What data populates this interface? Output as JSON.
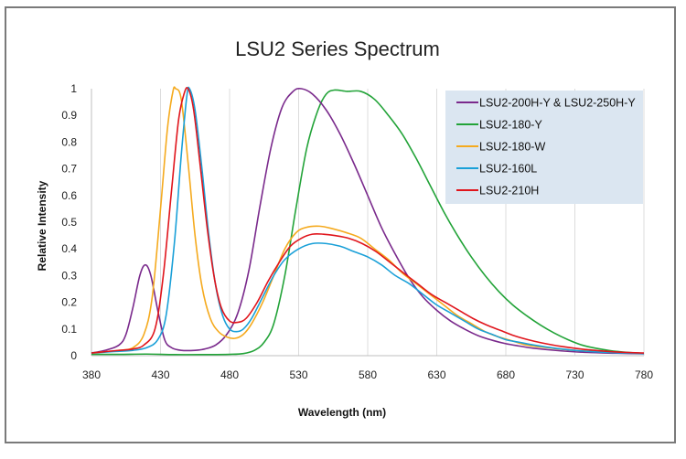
{
  "chart_data": {
    "type": "line",
    "title": "LSU2 Series Spectrum",
    "xlabel": "Wavelength (nm)",
    "ylabel": "Relative Intensity",
    "xlim": [
      380,
      780
    ],
    "ylim": [
      0,
      1
    ],
    "x_ticks": [
      "380",
      "430",
      "480",
      "530",
      "580",
      "630",
      "680",
      "730",
      "780"
    ],
    "y_ticks": [
      "0",
      "0.1",
      "0.2",
      "0.3",
      "0.4",
      "0.5",
      "0.6",
      "0.7",
      "0.8",
      "0.9",
      "1"
    ],
    "grid": "vertical",
    "legend_position": "top-right",
    "series": [
      {
        "name": "LSU2-200H-Y & LSU2-250H-Y",
        "color": "#7a2a8c",
        "points": [
          [
            380,
            0.01
          ],
          [
            390,
            0.02
          ],
          [
            400,
            0.04
          ],
          [
            405,
            0.08
          ],
          [
            410,
            0.18
          ],
          [
            415,
            0.3
          ],
          [
            419,
            0.34
          ],
          [
            423,
            0.3
          ],
          [
            428,
            0.17
          ],
          [
            433,
            0.06
          ],
          [
            438,
            0.03
          ],
          [
            445,
            0.02
          ],
          [
            455,
            0.02
          ],
          [
            462,
            0.025
          ],
          [
            470,
            0.04
          ],
          [
            478,
            0.08
          ],
          [
            486,
            0.16
          ],
          [
            494,
            0.32
          ],
          [
            502,
            0.56
          ],
          [
            510,
            0.78
          ],
          [
            518,
            0.93
          ],
          [
            526,
            0.99
          ],
          [
            532,
            1.0
          ],
          [
            540,
            0.98
          ],
          [
            550,
            0.92
          ],
          [
            560,
            0.83
          ],
          [
            570,
            0.72
          ],
          [
            580,
            0.6
          ],
          [
            590,
            0.48
          ],
          [
            600,
            0.38
          ],
          [
            610,
            0.29
          ],
          [
            620,
            0.22
          ],
          [
            630,
            0.17
          ],
          [
            640,
            0.13
          ],
          [
            650,
            0.1
          ],
          [
            660,
            0.075
          ],
          [
            670,
            0.058
          ],
          [
            680,
            0.045
          ],
          [
            690,
            0.036
          ],
          [
            700,
            0.028
          ],
          [
            720,
            0.018
          ],
          [
            740,
            0.012
          ],
          [
            760,
            0.009
          ],
          [
            780,
            0.007
          ]
        ]
      },
      {
        "name": "LSU2-180-Y",
        "color": "#22a338",
        "points": [
          [
            380,
            0.005
          ],
          [
            400,
            0.005
          ],
          [
            420,
            0.006
          ],
          [
            440,
            0.004
          ],
          [
            460,
            0.004
          ],
          [
            480,
            0.005
          ],
          [
            490,
            0.008
          ],
          [
            498,
            0.02
          ],
          [
            505,
            0.05
          ],
          [
            512,
            0.12
          ],
          [
            520,
            0.3
          ],
          [
            528,
            0.55
          ],
          [
            536,
            0.78
          ],
          [
            544,
            0.92
          ],
          [
            550,
            0.98
          ],
          [
            556,
            0.995
          ],
          [
            565,
            0.99
          ],
          [
            575,
            0.99
          ],
          [
            585,
            0.96
          ],
          [
            595,
            0.9
          ],
          [
            605,
            0.83
          ],
          [
            615,
            0.74
          ],
          [
            625,
            0.64
          ],
          [
            635,
            0.54
          ],
          [
            645,
            0.45
          ],
          [
            655,
            0.37
          ],
          [
            665,
            0.3
          ],
          [
            675,
            0.24
          ],
          [
            685,
            0.19
          ],
          [
            695,
            0.15
          ],
          [
            705,
            0.115
          ],
          [
            715,
            0.085
          ],
          [
            725,
            0.06
          ],
          [
            735,
            0.04
          ],
          [
            745,
            0.028
          ],
          [
            760,
            0.016
          ],
          [
            780,
            0.008
          ]
        ]
      },
      {
        "name": "LSU2-180-W",
        "color": "#f5aa1e",
        "points": [
          [
            380,
            0.01
          ],
          [
            390,
            0.015
          ],
          [
            400,
            0.02
          ],
          [
            410,
            0.03
          ],
          [
            418,
            0.08
          ],
          [
            424,
            0.22
          ],
          [
            430,
            0.55
          ],
          [
            435,
            0.85
          ],
          [
            439,
            0.99
          ],
          [
            441,
            1.0
          ],
          [
            445,
            0.96
          ],
          [
            450,
            0.72
          ],
          [
            455,
            0.45
          ],
          [
            460,
            0.26
          ],
          [
            466,
            0.14
          ],
          [
            472,
            0.09
          ],
          [
            478,
            0.07
          ],
          [
            484,
            0.065
          ],
          [
            490,
            0.08
          ],
          [
            496,
            0.12
          ],
          [
            504,
            0.2
          ],
          [
            512,
            0.3
          ],
          [
            520,
            0.4
          ],
          [
            528,
            0.46
          ],
          [
            535,
            0.48
          ],
          [
            545,
            0.485
          ],
          [
            555,
            0.475
          ],
          [
            565,
            0.46
          ],
          [
            575,
            0.44
          ],
          [
            585,
            0.4
          ],
          [
            595,
            0.36
          ],
          [
            605,
            0.31
          ],
          [
            615,
            0.27
          ],
          [
            625,
            0.23
          ],
          [
            635,
            0.19
          ],
          [
            645,
            0.15
          ],
          [
            655,
            0.12
          ],
          [
            665,
            0.09
          ],
          [
            675,
            0.07
          ],
          [
            685,
            0.055
          ],
          [
            695,
            0.04
          ],
          [
            710,
            0.03
          ],
          [
            730,
            0.02
          ],
          [
            760,
            0.012
          ],
          [
            780,
            0.008
          ]
        ]
      },
      {
        "name": "LSU2-160L",
        "color": "#1aa0d8",
        "points": [
          [
            380,
            0.01
          ],
          [
            395,
            0.015
          ],
          [
            410,
            0.02
          ],
          [
            420,
            0.03
          ],
          [
            428,
            0.06
          ],
          [
            434,
            0.15
          ],
          [
            440,
            0.42
          ],
          [
            445,
            0.75
          ],
          [
            449,
            0.97
          ],
          [
            451,
            1.0
          ],
          [
            455,
            0.92
          ],
          [
            460,
            0.7
          ],
          [
            465,
            0.45
          ],
          [
            470,
            0.26
          ],
          [
            475,
            0.15
          ],
          [
            480,
            0.1
          ],
          [
            485,
            0.09
          ],
          [
            490,
            0.1
          ],
          [
            496,
            0.14
          ],
          [
            504,
            0.22
          ],
          [
            512,
            0.3
          ],
          [
            520,
            0.36
          ],
          [
            530,
            0.4
          ],
          [
            540,
            0.42
          ],
          [
            550,
            0.42
          ],
          [
            560,
            0.41
          ],
          [
            570,
            0.39
          ],
          [
            580,
            0.37
          ],
          [
            590,
            0.34
          ],
          [
            600,
            0.3
          ],
          [
            610,
            0.27
          ],
          [
            620,
            0.23
          ],
          [
            630,
            0.19
          ],
          [
            640,
            0.16
          ],
          [
            650,
            0.13
          ],
          [
            660,
            0.1
          ],
          [
            670,
            0.08
          ],
          [
            680,
            0.06
          ],
          [
            690,
            0.05
          ],
          [
            700,
            0.04
          ],
          [
            720,
            0.025
          ],
          [
            740,
            0.016
          ],
          [
            760,
            0.011
          ],
          [
            780,
            0.008
          ]
        ]
      },
      {
        "name": "LSU2-210H",
        "color": "#e0151c",
        "points": [
          [
            380,
            0.01
          ],
          [
            390,
            0.015
          ],
          [
            400,
            0.02
          ],
          [
            410,
            0.025
          ],
          [
            418,
            0.04
          ],
          [
            426,
            0.1
          ],
          [
            432,
            0.3
          ],
          [
            438,
            0.62
          ],
          [
            443,
            0.88
          ],
          [
            447,
            0.98
          ],
          [
            450,
            1.0
          ],
          [
            454,
            0.92
          ],
          [
            459,
            0.7
          ],
          [
            464,
            0.47
          ],
          [
            469,
            0.29
          ],
          [
            474,
            0.18
          ],
          [
            480,
            0.13
          ],
          [
            486,
            0.125
          ],
          [
            492,
            0.14
          ],
          [
            500,
            0.2
          ],
          [
            508,
            0.28
          ],
          [
            516,
            0.35
          ],
          [
            524,
            0.41
          ],
          [
            532,
            0.44
          ],
          [
            540,
            0.455
          ],
          [
            548,
            0.455
          ],
          [
            556,
            0.45
          ],
          [
            566,
            0.44
          ],
          [
            576,
            0.42
          ],
          [
            586,
            0.39
          ],
          [
            596,
            0.35
          ],
          [
            606,
            0.31
          ],
          [
            616,
            0.27
          ],
          [
            626,
            0.23
          ],
          [
            636,
            0.2
          ],
          [
            646,
            0.17
          ],
          [
            656,
            0.14
          ],
          [
            666,
            0.115
          ],
          [
            676,
            0.095
          ],
          [
            686,
            0.075
          ],
          [
            696,
            0.06
          ],
          [
            706,
            0.048
          ],
          [
            720,
            0.035
          ],
          [
            740,
            0.022
          ],
          [
            760,
            0.014
          ],
          [
            780,
            0.01
          ]
        ]
      }
    ]
  }
}
